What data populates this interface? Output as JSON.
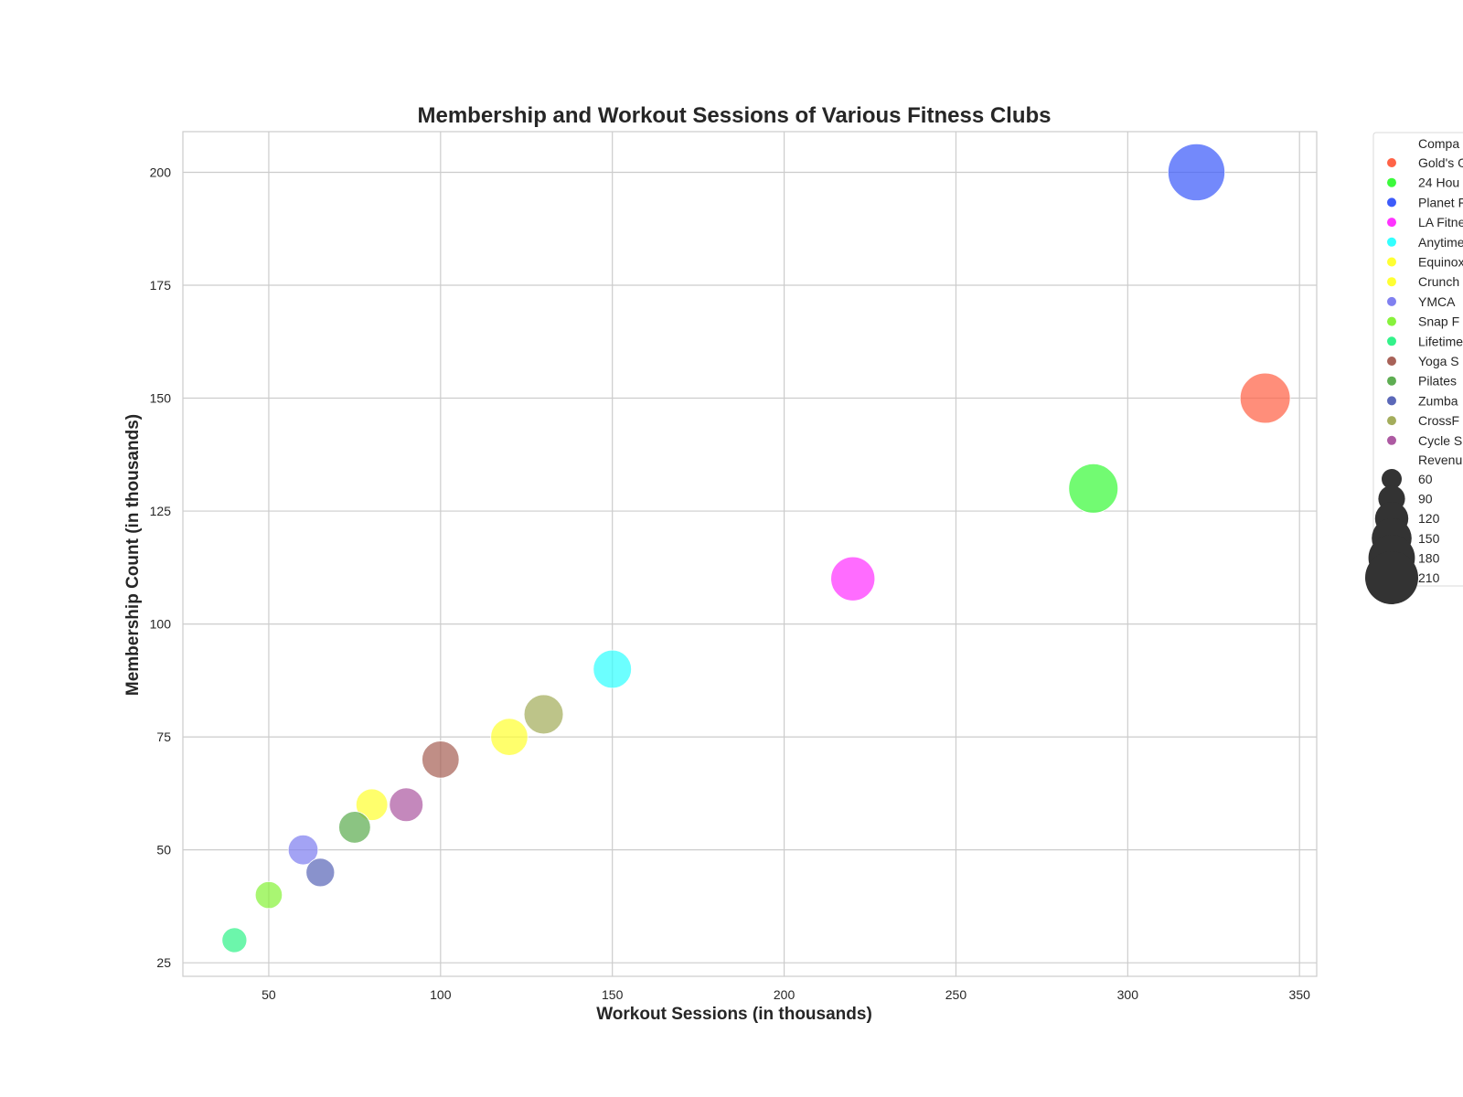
{
  "chart_data": {
    "type": "scatter",
    "title": "Membership and Workout Sessions of Various Fitness Clubs",
    "xlabel": "Workout Sessions (in thousands)",
    "ylabel": "Membership Count (in thousands)",
    "xlim": [
      25,
      355
    ],
    "ylim": [
      22,
      209
    ],
    "xticks": [
      50,
      100,
      150,
      200,
      250,
      300,
      350
    ],
    "yticks": [
      25,
      50,
      75,
      100,
      125,
      150,
      175,
      200
    ],
    "grid": true,
    "legend": {
      "placement": "outside-right",
      "hue_title": "Compa",
      "size_title": "Revenu",
      "size_values": [
        60,
        90,
        120,
        150,
        180,
        210
      ]
    },
    "series": [
      {
        "name": "Gold's G",
        "color": "#ff6347",
        "x": 340,
        "y": 150,
        "size": 155
      },
      {
        "name": "24 Hou",
        "color": "#3cfa3c",
        "x": 290,
        "y": 130,
        "size": 150
      },
      {
        "name": "Planet F",
        "color": "#3d5bfa",
        "x": 320,
        "y": 200,
        "size": 200
      },
      {
        "name": "LA Fitne",
        "color": "#ff33ff",
        "x": 220,
        "y": 110,
        "size": 120
      },
      {
        "name": "Anytime",
        "color": "#33ffff",
        "x": 150,
        "y": 90,
        "size": 90
      },
      {
        "name": "Equinox",
        "color": "#ffff33",
        "x": 120,
        "y": 75,
        "size": 85
      },
      {
        "name": "Crunch",
        "color": "#ffff33",
        "x": 80,
        "y": 60,
        "size": 62
      },
      {
        "name": "YMCA",
        "color": "#8080f0",
        "x": 60,
        "y": 50,
        "size": 55
      },
      {
        "name": "Snap F",
        "color": "#88f23c",
        "x": 50,
        "y": 40,
        "size": 45
      },
      {
        "name": "Lifetime",
        "color": "#33f28a",
        "x": 40,
        "y": 30,
        "size": 38
      },
      {
        "name": "Yoga S",
        "color": "#a86258",
        "x": 100,
        "y": 70,
        "size": 85
      },
      {
        "name": "Pilates",
        "color": "#5ead52",
        "x": 75,
        "y": 55,
        "size": 62
      },
      {
        "name": "Zumba",
        "color": "#5b68b8",
        "x": 65,
        "y": 45,
        "size": 50
      },
      {
        "name": "CrossF",
        "color": "#a4ad5c",
        "x": 130,
        "y": 80,
        "size": 95
      },
      {
        "name": "Cycle S",
        "color": "#ad5aa2",
        "x": 90,
        "y": 60,
        "size": 70
      }
    ]
  }
}
